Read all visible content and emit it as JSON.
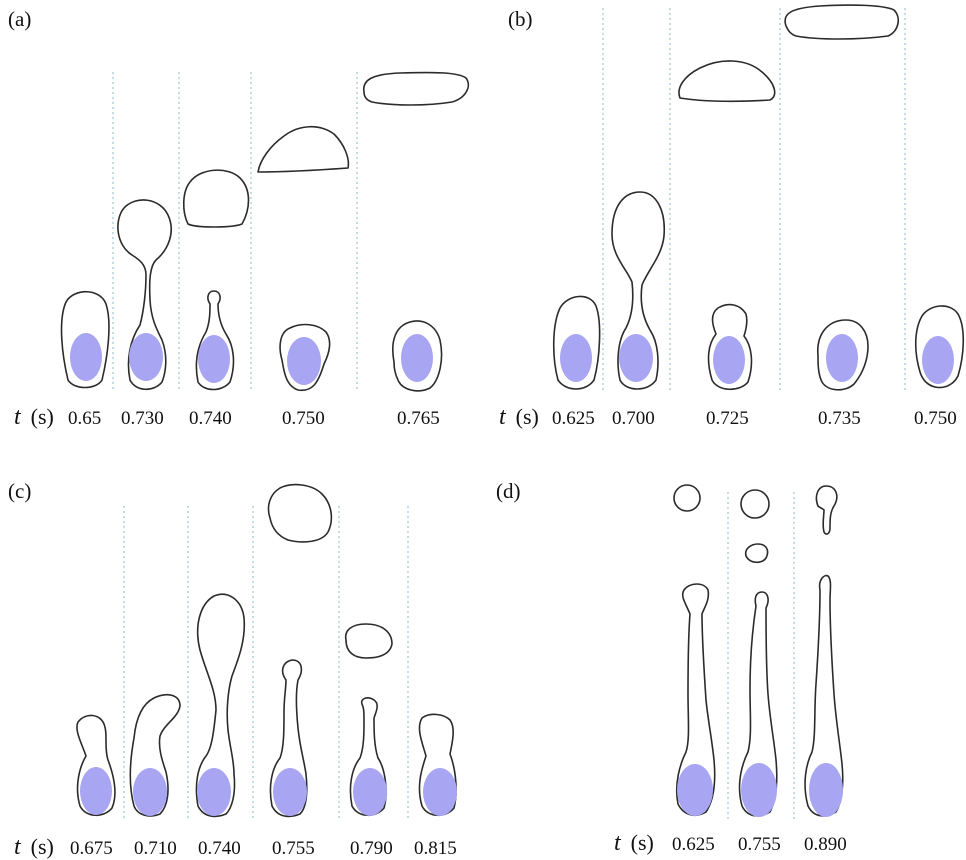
{
  "panels": [
    {
      "id": "a",
      "label": "(a)",
      "axis_t": "t",
      "axis_unit": "(s)",
      "times": [
        "0.65",
        "0.730",
        "0.740",
        "0.750",
        "0.765"
      ]
    },
    {
      "id": "b",
      "label": "(b)",
      "axis_t": "t",
      "axis_unit": "(s)",
      "times": [
        "0.625",
        "0.700",
        "0.725",
        "0.735",
        "0.750"
      ]
    },
    {
      "id": "c",
      "label": "(c)",
      "axis_t": "t",
      "axis_unit": "(s)",
      "times": [
        "0.675",
        "0.710",
        "0.740",
        "0.755",
        "0.790",
        "0.815"
      ]
    },
    {
      "id": "d",
      "label": "(d)",
      "axis_t": "t",
      "axis_unit": "(s)",
      "times": [
        "0.625",
        "0.755",
        "0.890"
      ]
    }
  ],
  "colors": {
    "particle": "#a8a5f3",
    "bubble_outline": "#2b2b2b",
    "frame_divider": "#9fc6d6"
  }
}
